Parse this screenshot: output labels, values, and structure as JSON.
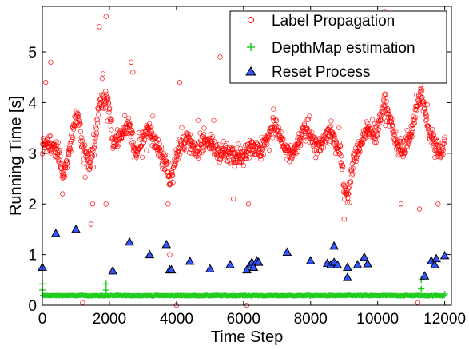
{
  "chart_data": {
    "type": "scatter",
    "title": "",
    "xlabel": "Time Step",
    "ylabel": "Running Time [s]",
    "xlim": [
      0,
      12200
    ],
    "ylim": [
      0,
      5.9
    ],
    "x_ticks": [
      0,
      2000,
      4000,
      6000,
      8000,
      10000,
      12000
    ],
    "x_tick_labels": [
      "0",
      "2000",
      "4000",
      "6000",
      "8000",
      "10000",
      "12000"
    ],
    "y_ticks": [
      0,
      1,
      2,
      3,
      4,
      5
    ],
    "y_tick_labels": [
      "0",
      "1",
      "2",
      "3",
      "4",
      "5"
    ],
    "grid": false,
    "legend_position": "top-right",
    "series": [
      {
        "name": "Label Propagation",
        "marker": "circle-open",
        "color": "#ff0000",
        "trend": [
          [
            0,
            3.1
          ],
          [
            150,
            3.2
          ],
          [
            300,
            3.1
          ],
          [
            500,
            3.0
          ],
          [
            600,
            2.5
          ],
          [
            700,
            2.7
          ],
          [
            900,
            3.4
          ],
          [
            1000,
            3.8
          ],
          [
            1100,
            3.7
          ],
          [
            1200,
            3.1
          ],
          [
            1400,
            2.8
          ],
          [
            1550,
            3.1
          ],
          [
            1700,
            4.0
          ],
          [
            1900,
            4.1
          ],
          [
            2000,
            3.9
          ],
          [
            2100,
            3.2
          ],
          [
            2300,
            3.3
          ],
          [
            2600,
            3.6
          ],
          [
            2800,
            2.9
          ],
          [
            3000,
            3.3
          ],
          [
            3200,
            3.5
          ],
          [
            3500,
            3.0
          ],
          [
            3700,
            2.8
          ],
          [
            3800,
            2.4
          ],
          [
            4000,
            3.0
          ],
          [
            4300,
            3.3
          ],
          [
            4600,
            3.0
          ],
          [
            4800,
            3.3
          ],
          [
            5000,
            3.2
          ],
          [
            5300,
            3.0
          ],
          [
            5500,
            3.0
          ],
          [
            5800,
            3.0
          ],
          [
            6000,
            2.9
          ],
          [
            6200,
            3.2
          ],
          [
            6500,
            3.0
          ],
          [
            6700,
            3.3
          ],
          [
            6900,
            3.6
          ],
          [
            7100,
            3.3
          ],
          [
            7300,
            3.0
          ],
          [
            7500,
            3.0
          ],
          [
            7700,
            3.3
          ],
          [
            7900,
            3.5
          ],
          [
            8100,
            3.2
          ],
          [
            8300,
            3.1
          ],
          [
            8500,
            3.4
          ],
          [
            8700,
            3.3
          ],
          [
            8900,
            3.0
          ],
          [
            9000,
            2.3
          ],
          [
            9100,
            2.2
          ],
          [
            9300,
            2.9
          ],
          [
            9500,
            3.2
          ],
          [
            9700,
            3.5
          ],
          [
            9900,
            3.3
          ],
          [
            10100,
            3.7
          ],
          [
            10200,
            4.1
          ],
          [
            10400,
            3.6
          ],
          [
            10600,
            3.1
          ],
          [
            10800,
            3.1
          ],
          [
            11000,
            3.4
          ],
          [
            11200,
            4.0
          ],
          [
            11300,
            4.2
          ],
          [
            11500,
            3.5
          ],
          [
            11700,
            3.2
          ],
          [
            11900,
            3.0
          ],
          [
            12000,
            3.2
          ]
        ],
        "outliers": [
          [
            100,
            4.4
          ],
          [
            250,
            4.8
          ],
          [
            1900,
            5.7
          ],
          [
            1700,
            5.5
          ],
          [
            2650,
            4.8
          ],
          [
            2700,
            4.6
          ],
          [
            5300,
            4.9
          ],
          [
            6000,
            4.7
          ],
          [
            6450,
            5.0
          ],
          [
            7500,
            4.8
          ],
          [
            10000,
            5.3
          ],
          [
            10500,
            5.1
          ],
          [
            11000,
            4.9
          ],
          [
            10200,
            5.8
          ],
          [
            10700,
            5.3
          ],
          [
            600,
            2.2
          ],
          [
            1450,
            1.6
          ],
          [
            1500,
            2.0
          ],
          [
            1900,
            2.0
          ],
          [
            3750,
            2.0
          ],
          [
            5700,
            2.1
          ],
          [
            6150,
            2.0
          ],
          [
            9000,
            1.7
          ],
          [
            10700,
            2.0
          ],
          [
            11250,
            1.9
          ],
          [
            11800,
            2.0
          ],
          [
            4100,
            4.4
          ],
          [
            8400,
            4.6
          ],
          [
            9600,
            4.5
          ],
          [
            7100,
            4.7
          ],
          [
            3800,
            1.0
          ],
          [
            1200,
            0.05
          ],
          [
            4000,
            0.0
          ],
          [
            6100,
            0.0
          ],
          [
            11200,
            0.05
          ]
        ]
      },
      {
        "name": "DepthMap estimation",
        "marker": "plus",
        "color": "#22cc22",
        "baseline": 0.19,
        "outliers": [
          [
            0,
            0.42
          ],
          [
            0,
            0.3
          ],
          [
            1900,
            0.42
          ],
          [
            1900,
            0.3
          ],
          [
            11300,
            0.5
          ],
          [
            11300,
            0.32
          ],
          [
            12000,
            0.22
          ]
        ]
      },
      {
        "name": "Reset Process",
        "marker": "triangle",
        "color": "#3355ff",
        "points": [
          [
            0,
            0.75
          ],
          [
            400,
            1.42
          ],
          [
            1000,
            1.5
          ],
          [
            2100,
            0.68
          ],
          [
            2600,
            1.25
          ],
          [
            3200,
            1.0
          ],
          [
            3700,
            1.2
          ],
          [
            3800,
            0.7
          ],
          [
            3850,
            0.7
          ],
          [
            4400,
            0.87
          ],
          [
            5000,
            0.72
          ],
          [
            5600,
            0.8
          ],
          [
            6100,
            0.7
          ],
          [
            6200,
            0.8
          ],
          [
            6250,
            0.85
          ],
          [
            6300,
            0.75
          ],
          [
            6400,
            0.88
          ],
          [
            6450,
            0.85
          ],
          [
            7300,
            1.05
          ],
          [
            8000,
            0.88
          ],
          [
            8500,
            0.83
          ],
          [
            8600,
            0.8
          ],
          [
            8700,
            0.85
          ],
          [
            8700,
            1.17
          ],
          [
            8800,
            0.8
          ],
          [
            9100,
            0.55
          ],
          [
            9100,
            0.75
          ],
          [
            9400,
            0.8
          ],
          [
            9600,
            0.95
          ],
          [
            9700,
            0.82
          ],
          [
            11400,
            0.58
          ],
          [
            11600,
            0.88
          ],
          [
            11700,
            0.8
          ],
          [
            11750,
            0.92
          ],
          [
            12000,
            0.98
          ]
        ]
      }
    ]
  }
}
